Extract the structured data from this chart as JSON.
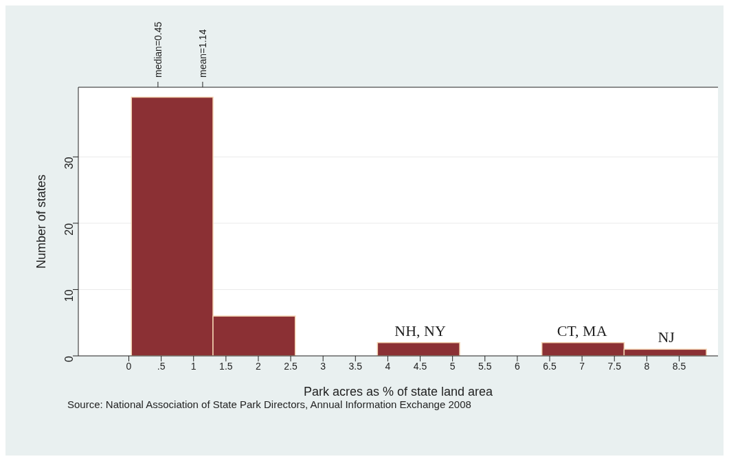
{
  "chart_data": {
    "type": "histogram",
    "xlabel": "Park acres as % of state land area",
    "ylabel": "Number of states",
    "bins": [
      0.04,
      1.3,
      2.57,
      3.84,
      5.11,
      6.38,
      7.65,
      8.92
    ],
    "values": [
      39,
      6,
      0,
      2,
      0,
      2,
      1
    ],
    "color": "#8b3034",
    "xlim": [
      -0.78,
      9.1
    ],
    "xticks": [
      0,
      {
        "value": 0.5,
        "label": ".5"
      },
      1,
      1.5,
      2,
      2.5,
      3,
      3.5,
      4,
      4.5,
      5,
      5.5,
      6,
      6.5,
      7,
      7.5,
      8,
      8.5
    ],
    "x2lim": [
      -0.78,
      9.1
    ],
    "x2ticks": [
      {
        "value": 0.45,
        "label": "median=0.45"
      },
      {
        "value": 1.14,
        "label": "mean=1.14"
      }
    ],
    "ylim": [
      0,
      40.5
    ],
    "yticks": [
      0,
      10,
      20,
      30
    ],
    "grid": "y",
    "annotations": [
      {
        "text": "NH, NY",
        "x": 4.5,
        "y": 2
      },
      {
        "text": "CT, MA",
        "x": 7.0,
        "y": 2
      },
      {
        "text": "NJ",
        "x": 8.3,
        "y": 1
      },
      "Source: National Association of State Park Directors, Annual Information Exchange 2008"
    ]
  }
}
